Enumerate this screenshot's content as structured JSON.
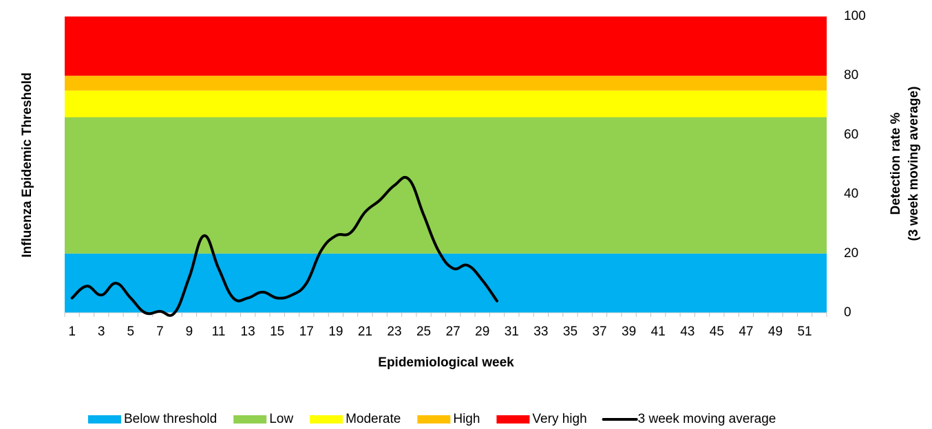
{
  "chart_data": {
    "type": "band_line",
    "xlabel": "Epidemiological week",
    "ylabel": "Influenza Epidemic Threshold",
    "y2label": [
      "Detection rate %",
      "(3 week moving average)"
    ],
    "categories": [
      "1",
      null,
      "3",
      null,
      "5",
      null,
      "7",
      null,
      "9",
      null,
      "11",
      null,
      "13",
      null,
      "15",
      null,
      "17",
      null,
      "19",
      null,
      "21",
      null,
      "23",
      null,
      "25",
      null,
      "27",
      null,
      "29",
      null,
      "31",
      null,
      "33",
      null,
      "35",
      null,
      "37",
      null,
      "39",
      null,
      "41",
      null,
      "43",
      null,
      "45",
      null,
      "47",
      null,
      "49",
      null,
      "51",
      null
    ],
    "ylim": [
      0,
      100
    ],
    "bands": [
      {
        "name": "Below threshold",
        "color": "#00b0f0",
        "value": 20
      },
      {
        "name": "Low",
        "color": "#92d050",
        "value": 46
      },
      {
        "name": "Moderate",
        "color": "#ffff00",
        "value": 9
      },
      {
        "name": "High",
        "color": "#ffc000",
        "value": 5
      },
      {
        "name": "Very high",
        "color": "#ff0000",
        "value": 20
      }
    ],
    "series": [
      {
        "name": "3 week moving average",
        "color": "#000000",
        "axis": "y2",
        "values": [
          5,
          9,
          6,
          10,
          5,
          0,
          0.5,
          0,
          12,
          26,
          15,
          5,
          5,
          7,
          5,
          6,
          10,
          21,
          26,
          27,
          34,
          38,
          43,
          45,
          33,
          21,
          15,
          16,
          11,
          4,
          null,
          null,
          null,
          null,
          null,
          null,
          null,
          null,
          null,
          null,
          null,
          null,
          null,
          null,
          null,
          null,
          null,
          null,
          null,
          null,
          null,
          null
        ]
      }
    ],
    "y2lim": [
      0,
      100
    ],
    "y2ticks": [
      0,
      20,
      40,
      60,
      80,
      100
    ],
    "legend": "bottom"
  }
}
